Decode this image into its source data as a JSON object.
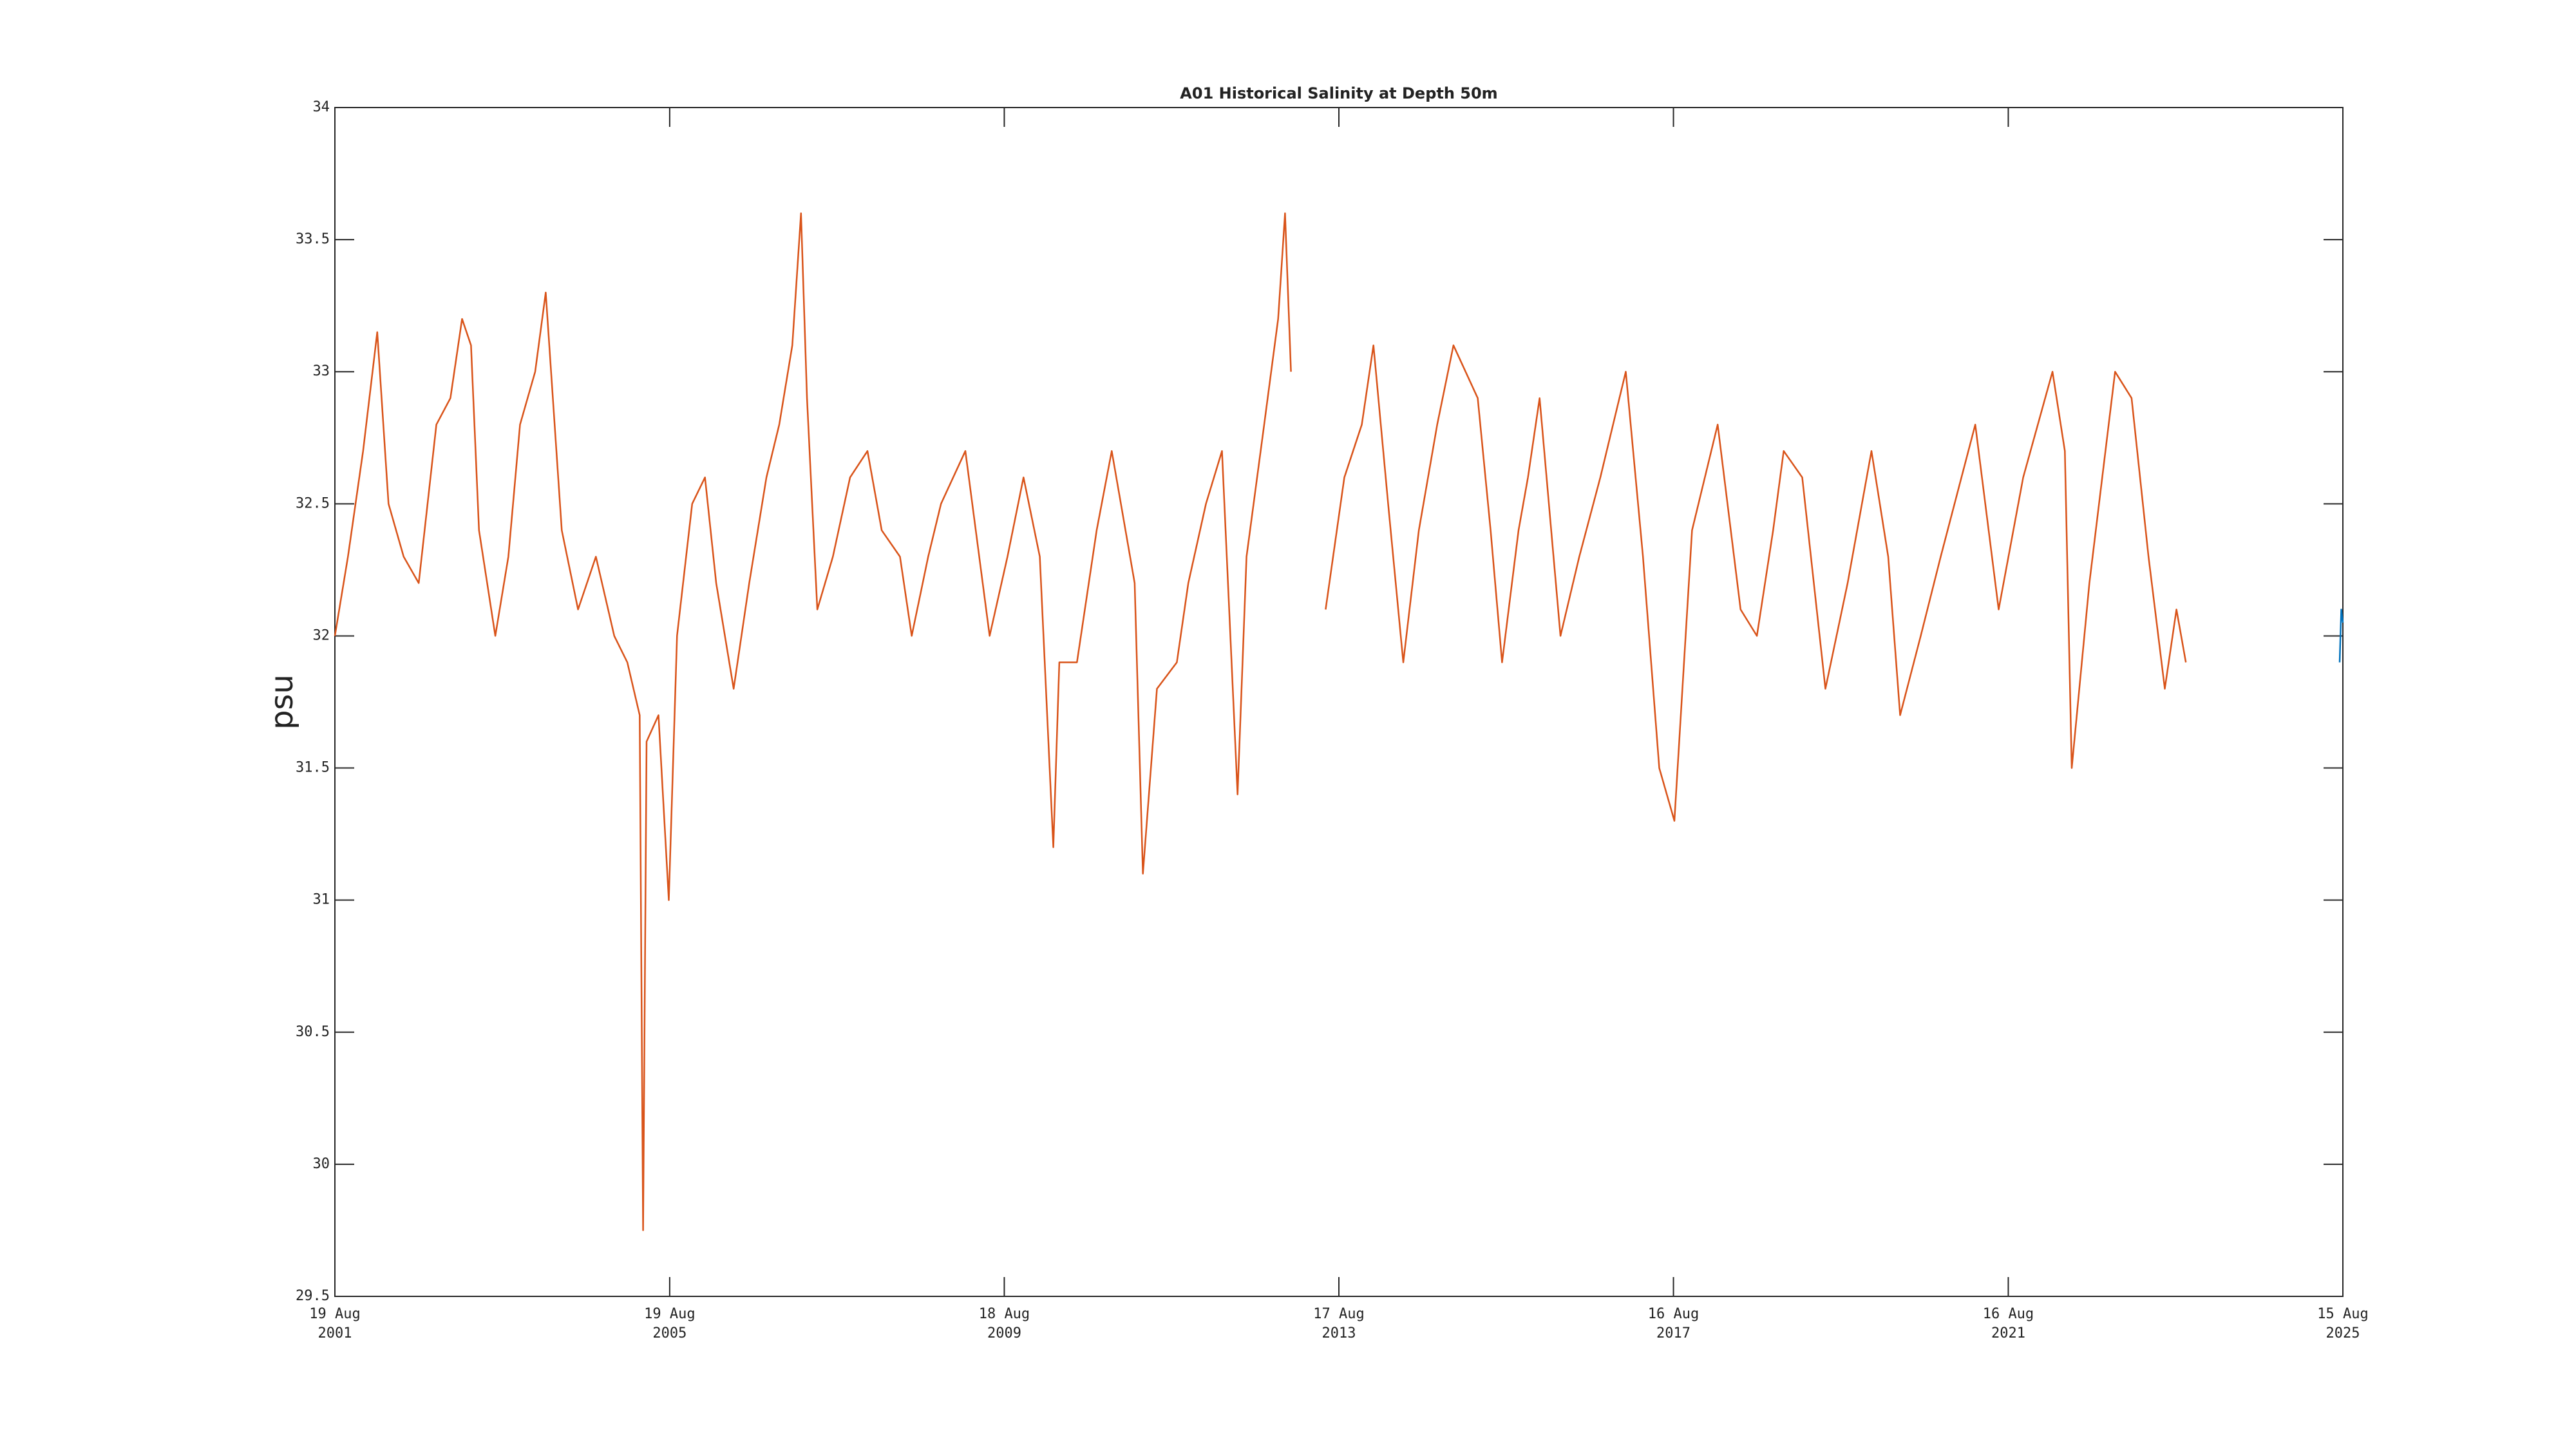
{
  "chart_data": {
    "type": "line",
    "title": "A01 Historical Salinity at Depth 50m",
    "y_label": "psu",
    "xlim": [
      "2001-08-19",
      "2025-08-15"
    ],
    "xticks": [
      {
        "value": "2001-08-19",
        "label": [
          "19 Aug",
          "2001"
        ]
      },
      {
        "value": "2005-08-19",
        "label": [
          "19 Aug",
          "2005"
        ]
      },
      {
        "value": "2009-08-18",
        "label": [
          "18 Aug",
          "2009"
        ]
      },
      {
        "value": "2013-08-17",
        "label": [
          "17 Aug",
          "2013"
        ]
      },
      {
        "value": "2017-08-16",
        "label": [
          "16 Aug",
          "2017"
        ]
      },
      {
        "value": "2021-08-16",
        "label": [
          "16 Aug",
          "2021"
        ]
      },
      {
        "value": "2025-08-15",
        "label": [
          "15 Aug",
          "2025"
        ]
      }
    ],
    "ylim": [
      29.5,
      34
    ],
    "yticks": [
      29.5,
      30,
      30.5,
      31,
      31.5,
      32,
      32.5,
      33,
      33.5,
      34
    ],
    "grid": false,
    "series": [
      {
        "color": "#d95319",
        "x": [
          "2001-08-19",
          "2001-10-15",
          "2001-12-20",
          "2002-02-20",
          "2002-04-10",
          "2002-06-15",
          "2002-08-20",
          "2002-11-05",
          "2003-01-05",
          "2003-02-25",
          "2003-04-05",
          "2003-05-10",
          "2003-07-20",
          "2003-09-15",
          "2003-11-05",
          "2004-01-10",
          "2004-02-25",
          "2004-05-05",
          "2004-07-15",
          "2004-10-01",
          "2004-12-20",
          "2005-02-15",
          "2005-04-10",
          "2005-04-25",
          "2005-05-10",
          "2005-07-01",
          "2005-08-15",
          "2005-09-20",
          "2005-11-25",
          "2006-01-20",
          "2006-03-10",
          "2006-05-25",
          "2006-08-01",
          "2006-10-15",
          "2006-12-10",
          "2007-02-05",
          "2007-03-15",
          "2007-04-10",
          "2007-05-25",
          "2007-08-01",
          "2007-10-15",
          "2007-12-30",
          "2008-03-01",
          "2008-05-20",
          "2008-07-10",
          "2008-09-20",
          "2008-11-15",
          "2009-03-01",
          "2009-06-15",
          "2009-09-01",
          "2009-11-10",
          "2010-01-20",
          "2010-03-20",
          "2010-04-15",
          "2010-07-01",
          "2010-09-25",
          "2010-11-30",
          "2011-03-10",
          "2011-04-15",
          "2011-06-15",
          "2011-09-10",
          "2011-10-30",
          "2012-01-15",
          "2012-03-25",
          "2012-06-01",
          "2012-07-10",
          "2012-09-25",
          "2012-11-25",
          "2012-12-25",
          "2013-01-20",
          "2013-03-20",
          "2013-06-20",
          "2013-09-10",
          "2013-11-25",
          "2014-01-15",
          "2014-03-20",
          "2014-05-25",
          "2014-08-01",
          "2014-10-20",
          "2014-12-30",
          "2015-04-15",
          "2015-06-10",
          "2015-07-30",
          "2015-10-10",
          "2015-11-20",
          "2016-01-10",
          "2016-04-10",
          "2016-07-01",
          "2016-10-01",
          "2017-01-20",
          "2017-04-05",
          "2017-06-15",
          "2017-08-20",
          "2017-11-05",
          "2018-02-25",
          "2018-06-05",
          "2018-08-15",
          "2018-10-25",
          "2018-12-10",
          "2019-03-01",
          "2019-06-10",
          "2019-09-15",
          "2019-12-28",
          "2020-03-10",
          "2020-05-01",
          "2020-07-30",
          "2020-10-25",
          "2021-03-25",
          "2021-07-05",
          "2021-10-20",
          "2022-02-25",
          "2022-04-20",
          "2022-05-20",
          "2022-08-05",
          "2022-11-25",
          "2023-02-05",
          "2023-04-20",
          "2023-06-30",
          "2023-08-20",
          "2023-09-30"
        ],
        "values": [
          32.0,
          32.3,
          32.7,
          33.15,
          32.5,
          32.3,
          32.2,
          32.8,
          32.9,
          33.2,
          33.1,
          32.4,
          32.0,
          32.3,
          32.8,
          33.0,
          33.3,
          32.4,
          32.1,
          32.3,
          32.0,
          31.9,
          31.7,
          29.75,
          31.6,
          31.7,
          31.0,
          32.0,
          32.5,
          32.6,
          32.2,
          31.8,
          32.2,
          32.6,
          32.8,
          33.1,
          33.6,
          32.9,
          32.1,
          32.3,
          32.6,
          32.7,
          32.4,
          32.3,
          32.0,
          32.3,
          32.5,
          32.7,
          32.0,
          32.3,
          32.6,
          32.3,
          31.2,
          31.9,
          31.9,
          32.4,
          32.7,
          32.2,
          31.1,
          31.8,
          31.9,
          32.2,
          32.5,
          32.7,
          31.4,
          32.3,
          32.8,
          33.2,
          33.6,
          33.0,
          null,
          32.1,
          32.6,
          32.8,
          33.1,
          32.5,
          31.9,
          32.4,
          32.8,
          33.1,
          32.9,
          32.4,
          31.9,
          32.4,
          32.6,
          32.9,
          32.0,
          32.3,
          32.6,
          33.0,
          32.3,
          31.5,
          31.3,
          32.4,
          32.8,
          32.1,
          32.0,
          32.4,
          32.7,
          32.6,
          31.8,
          32.2,
          32.7,
          32.3,
          31.7,
          32.0,
          32.3,
          32.8,
          32.1,
          32.6,
          33.0,
          32.7,
          31.5,
          32.2,
          33.0,
          32.9,
          32.3,
          31.8,
          32.1,
          31.9
        ]
      },
      {
        "color": "#0072bd",
        "x": [
          "2025-08-01",
          "2025-08-08",
          "2025-08-15"
        ],
        "values": [
          31.9,
          32.1,
          32.05
        ]
      }
    ]
  }
}
